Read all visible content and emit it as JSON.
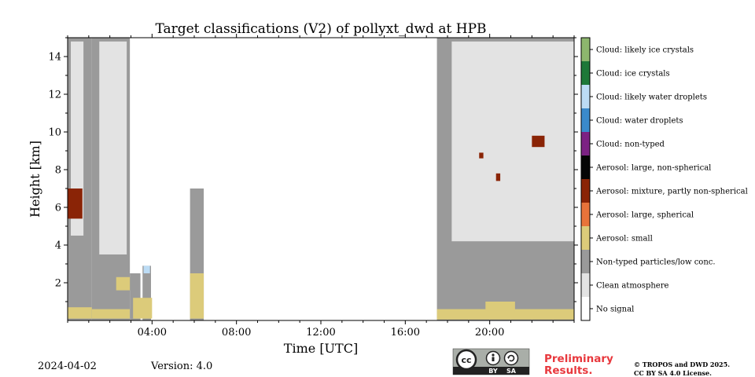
{
  "chart_data": {
    "type": "heatmap",
    "title": "Target classifications (V2) of pollyxt_dwd at HPB",
    "xlabel": "Time [UTC]",
    "ylabel": "Height [km]",
    "x_range_hours": [
      0,
      24
    ],
    "y_range_km": [
      0,
      15
    ],
    "x_ticks": [
      {
        "value": 4,
        "label": "04:00"
      },
      {
        "value": 8,
        "label": "08:00"
      },
      {
        "value": 12,
        "label": "12:00"
      },
      {
        "value": 16,
        "label": "16:00"
      },
      {
        "value": 20,
        "label": "20:00"
      }
    ],
    "y_ticks": [
      {
        "value": 2,
        "label": "2"
      },
      {
        "value": 4,
        "label": "4"
      },
      {
        "value": 6,
        "label": "6"
      },
      {
        "value": 8,
        "label": "8"
      },
      {
        "value": 10,
        "label": "10"
      },
      {
        "value": 12,
        "label": "12"
      },
      {
        "value": 14,
        "label": "14"
      }
    ],
    "classes": [
      {
        "label": "Cloud: likely ice crystals",
        "color": "#8db66e"
      },
      {
        "label": "Cloud: ice crystals",
        "color": "#1e7838"
      },
      {
        "label": "Cloud: likely water droplets",
        "color": "#bcdcf5"
      },
      {
        "label": "Cloud: water droplets",
        "color": "#3a8acb"
      },
      {
        "label": "Cloud: non-typed",
        "color": "#7c2283"
      },
      {
        "label": "Aerosol: large, non-spherical",
        "color": "#050505"
      },
      {
        "label": "Aerosol: mixture, partly non-spherical",
        "color": "#8a2406"
      },
      {
        "label": "Aerosol: large, spherical",
        "color": "#e8733a"
      },
      {
        "label": "Aerosol: small",
        "color": "#dccb7a"
      },
      {
        "label": "Non-typed particles/low conc.",
        "color": "#9a9a9a"
      },
      {
        "label": "Clean atmosphere",
        "color": "#e3e3e3"
      },
      {
        "label": "No signal",
        "color": "#ffffff"
      }
    ],
    "regions": [
      {
        "cls": 9,
        "t": [
          0.0,
          1.15
        ],
        "h": [
          0.0,
          15.0
        ]
      },
      {
        "cls": 10,
        "t": [
          0.15,
          0.75
        ],
        "h": [
          4.5,
          14.8
        ]
      },
      {
        "cls": 6,
        "t": [
          0.0,
          0.7
        ],
        "h": [
          5.4,
          7.0
        ]
      },
      {
        "cls": 8,
        "t": [
          0.0,
          1.15
        ],
        "h": [
          0.1,
          0.7
        ]
      },
      {
        "cls": 9,
        "t": [
          1.15,
          2.95
        ],
        "h": [
          0.0,
          15.0
        ]
      },
      {
        "cls": 10,
        "t": [
          1.5,
          2.8
        ],
        "h": [
          3.5,
          14.8
        ]
      },
      {
        "cls": 8,
        "t": [
          1.15,
          2.95
        ],
        "h": [
          0.1,
          0.6
        ]
      },
      {
        "cls": 8,
        "t": [
          2.3,
          3.0
        ],
        "h": [
          1.6,
          2.3
        ]
      },
      {
        "cls": 9,
        "t": [
          2.95,
          3.45
        ],
        "h": [
          0.0,
          2.5
        ]
      },
      {
        "cls": 9,
        "t": [
          3.55,
          3.95
        ],
        "h": [
          0.0,
          2.9
        ]
      },
      {
        "cls": 2,
        "t": [
          3.6,
          3.9
        ],
        "h": [
          2.5,
          2.9
        ]
      },
      {
        "cls": 8,
        "t": [
          3.1,
          4.0
        ],
        "h": [
          0.1,
          1.2
        ]
      },
      {
        "cls": 9,
        "t": [
          5.8,
          6.45
        ],
        "h": [
          0.0,
          7.0
        ]
      },
      {
        "cls": 8,
        "t": [
          5.8,
          6.45
        ],
        "h": [
          0.1,
          2.5
        ]
      },
      {
        "cls": 9,
        "t": [
          17.5,
          24.0
        ],
        "h": [
          0.0,
          15.0
        ]
      },
      {
        "cls": 10,
        "t": [
          18.2,
          24.0
        ],
        "h": [
          4.2,
          14.8
        ]
      },
      {
        "cls": 8,
        "t": [
          17.5,
          24.0
        ],
        "h": [
          0.05,
          0.6
        ]
      },
      {
        "cls": 8,
        "t": [
          19.8,
          21.2
        ],
        "h": [
          0.4,
          1.0
        ]
      },
      {
        "cls": 6,
        "t": [
          22.0,
          22.6
        ],
        "h": [
          9.2,
          9.8
        ]
      },
      {
        "cls": 6,
        "t": [
          20.3,
          20.5
        ],
        "h": [
          7.4,
          7.8
        ]
      },
      {
        "cls": 6,
        "t": [
          19.5,
          19.7
        ],
        "h": [
          8.6,
          8.9
        ]
      }
    ]
  },
  "footer": {
    "date": "2024-04-02",
    "version": "Version: 4.0",
    "license_by": "BY",
    "license_sa": "SA",
    "license_cc": "cc",
    "preliminary_line1": "Preliminary",
    "preliminary_line2": "Results.",
    "copyright_line1": "© TROPOS and DWD 2025.",
    "copyright_line2": "CC BY SA 4.0 License."
  }
}
